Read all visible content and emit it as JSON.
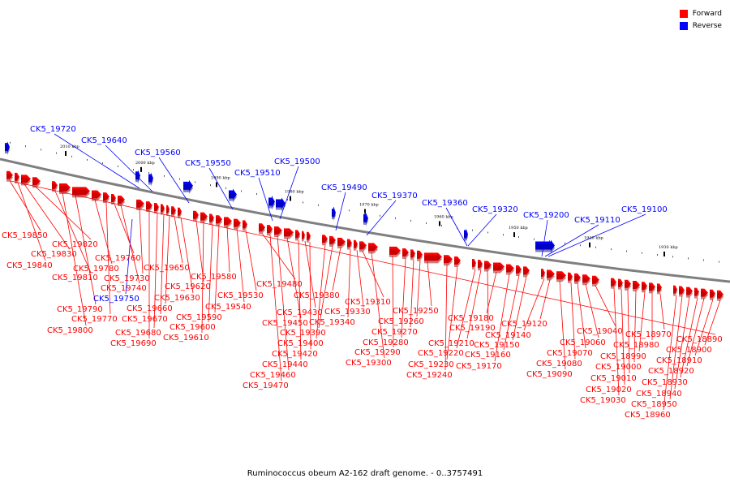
{
  "caption": "Ruminococcus obeum A2-162 draft genome. - 0..3757491",
  "legend": [
    {
      "label": "Forward",
      "color": "#ff0000"
    },
    {
      "label": "Reverse",
      "color": "#0000ff"
    }
  ],
  "colors": {
    "forward": "#ff0000",
    "reverse": "#0000ff",
    "backbone": "#7f7f7f"
  },
  "ticks": [
    "2010 kbp",
    "2000 kbp",
    "1990 kbp",
    "1980 kbp",
    "1970 kbp",
    "1960 kbp",
    "1950 kbp",
    "1940 kbp",
    "1930 kbp"
  ],
  "reverse_labels": [
    "CK5_19720",
    "CK5_19640",
    "CK5_19560",
    "CK5_19550",
    "CK5_19510",
    "CK5_19500",
    "CK5_19490",
    "CK5_19370",
    "CK5_19360",
    "CK5_19320",
    "CK5_19200",
    "CK5_19110",
    "CK5_19100"
  ],
  "reverse_label_below": "CK5_19750",
  "forward_labels": [
    "CK5_19850",
    "CK5_19840",
    "CK5_19830",
    "CK5_19820",
    "CK5_19810",
    "CK5_19800",
    "CK5_19790",
    "CK5_19780",
    "CK5_19770",
    "CK5_19760",
    "CK5_19740",
    "CK5_19730",
    "CK5_19690",
    "CK5_19680",
    "CK5_19670",
    "CK5_19660",
    "CK5_19650",
    "CK5_19630",
    "CK5_19620",
    "CK5_19610",
    "CK5_19600",
    "CK5_19590",
    "CK5_19580",
    "CK5_19540",
    "CK5_19530",
    "CK5_19480",
    "CK5_19470",
    "CK5_19460",
    "CK5_19450",
    "CK5_19440",
    "CK5_19430",
    "CK5_19420",
    "CK5_19400",
    "CK5_19390",
    "CK5_19380",
    "CK5_19340",
    "CK5_19330",
    "CK5_19310",
    "CK5_19300",
    "CK5_19290",
    "CK5_19280",
    "CK5_19270",
    "CK5_19260",
    "CK5_19250",
    "CK5_19240",
    "CK5_19230",
    "CK5_19220",
    "CK5_19210",
    "CK5_19190",
    "CK5_19180",
    "CK5_19170",
    "CK5_19160",
    "CK5_19150",
    "CK5_19140",
    "CK5_19120",
    "CK5_19090",
    "CK5_19080",
    "CK5_19070",
    "CK5_19060",
    "CK5_19040",
    "CK5_19030",
    "CK5_19020",
    "CK5_19010",
    "CK5_19000",
    "CK5_18990",
    "CK5_18980",
    "CK5_18970",
    "CK5_18960",
    "CK5_18950",
    "CK5_18940",
    "CK5_18930",
    "CK5_18920",
    "CK5_18910",
    "CK5_18900",
    "CK5_18890"
  ]
}
